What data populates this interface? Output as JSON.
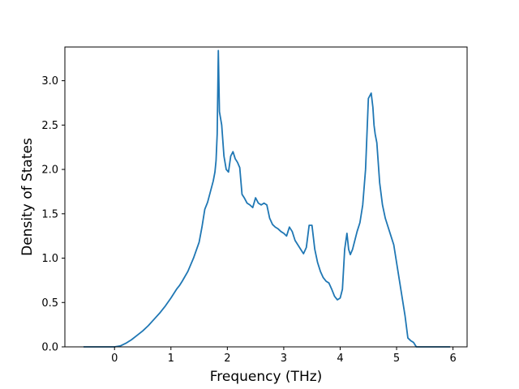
{
  "chart_data": {
    "type": "line",
    "title": "",
    "xlabel": "Frequency (THz)",
    "ylabel": "Density of States",
    "xlim": [
      -0.88,
      6.25
    ],
    "ylim": [
      0.0,
      3.38
    ],
    "xticks": [
      0,
      1,
      2,
      3,
      4,
      5,
      6
    ],
    "xtick_labels": [
      "0",
      "1",
      "2",
      "3",
      "4",
      "5",
      "6"
    ],
    "yticks": [
      0.0,
      0.5,
      1.0,
      1.5,
      2.0,
      2.5,
      3.0
    ],
    "ytick_labels": [
      "0.0",
      "0.5",
      "1.0",
      "1.5",
      "2.0",
      "2.5",
      "3.0"
    ],
    "grid": false,
    "legend": "none",
    "series": [
      {
        "color": "#1f77b4",
        "x": [
          -0.55,
          -0.3,
          0.0,
          0.1,
          0.2,
          0.3,
          0.4,
          0.5,
          0.6,
          0.7,
          0.8,
          0.9,
          1.0,
          1.1,
          1.15,
          1.2,
          1.3,
          1.4,
          1.5,
          1.55,
          1.6,
          1.65,
          1.7,
          1.75,
          1.78,
          1.8,
          1.82,
          1.84,
          1.86,
          1.9,
          1.94,
          1.98,
          2.02,
          2.06,
          2.1,
          2.14,
          2.18,
          2.22,
          2.26,
          2.3,
          2.35,
          2.4,
          2.45,
          2.5,
          2.55,
          2.6,
          2.65,
          2.7,
          2.75,
          2.8,
          2.85,
          2.9,
          2.95,
          3.0,
          3.05,
          3.1,
          3.15,
          3.2,
          3.25,
          3.3,
          3.35,
          3.4,
          3.45,
          3.5,
          3.55,
          3.6,
          3.65,
          3.7,
          3.75,
          3.8,
          3.85,
          3.9,
          3.95,
          4.0,
          4.04,
          4.08,
          4.12,
          4.15,
          4.18,
          4.22,
          4.26,
          4.3,
          4.35,
          4.4,
          4.45,
          4.5,
          4.55,
          4.58,
          4.6,
          4.62,
          4.65,
          4.7,
          4.75,
          4.8,
          4.85,
          4.9,
          4.95,
          5.0,
          5.05,
          5.1,
          5.15,
          5.2,
          5.25,
          5.3,
          5.35,
          5.4,
          5.6,
          5.95
        ],
        "y": [
          0.0,
          0.0,
          0.0,
          0.01,
          0.04,
          0.08,
          0.13,
          0.18,
          0.24,
          0.31,
          0.38,
          0.46,
          0.55,
          0.65,
          0.69,
          0.74,
          0.85,
          1.0,
          1.18,
          1.35,
          1.55,
          1.63,
          1.75,
          1.87,
          1.97,
          2.1,
          2.4,
          3.34,
          2.65,
          2.5,
          2.15,
          2.0,
          1.97,
          2.15,
          2.2,
          2.12,
          2.08,
          2.02,
          1.72,
          1.68,
          1.62,
          1.6,
          1.57,
          1.68,
          1.62,
          1.6,
          1.62,
          1.6,
          1.45,
          1.38,
          1.35,
          1.33,
          1.3,
          1.28,
          1.25,
          1.35,
          1.3,
          1.2,
          1.15,
          1.1,
          1.05,
          1.12,
          1.37,
          1.37,
          1.1,
          0.95,
          0.85,
          0.78,
          0.74,
          0.72,
          0.65,
          0.57,
          0.53,
          0.55,
          0.65,
          1.1,
          1.28,
          1.1,
          1.04,
          1.1,
          1.2,
          1.3,
          1.4,
          1.6,
          2.0,
          2.8,
          2.86,
          2.7,
          2.5,
          2.4,
          2.3,
          1.85,
          1.6,
          1.45,
          1.35,
          1.25,
          1.15,
          0.95,
          0.75,
          0.55,
          0.35,
          0.1,
          0.07,
          0.05,
          0.0,
          0.0,
          0.0,
          0.0
        ]
      }
    ]
  }
}
